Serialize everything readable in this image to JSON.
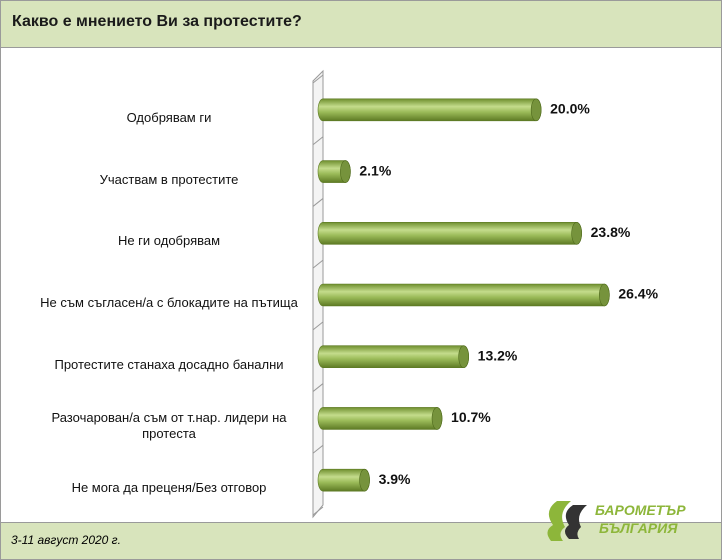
{
  "chart_data": {
    "type": "bar",
    "orientation": "horizontal",
    "title": "Какво е мнението Ви за протестите?",
    "categories": [
      "Одобрявам ги",
      "Участвам в протестите",
      "Не ги одобрявам",
      "Не съм съгласен/а с блокадите на пътища",
      "Протестите станаха досадно банални",
      "Разочарован/а съм от т.нар. лидери на протеста",
      "Не мога да преценя/Без отговор"
    ],
    "values": [
      20.0,
      2.1,
      23.8,
      26.4,
      13.2,
      10.7,
      3.9
    ],
    "value_labels": [
      "20.0%",
      "2.1%",
      "23.8%",
      "26.4%",
      "13.2%",
      "10.7%",
      "3.9%"
    ],
    "color": "#9bbb59",
    "xlim": [
      0,
      35
    ]
  },
  "footer": {
    "date": "3-11 август 2020 г."
  },
  "logo": {
    "line1": "БАРОМЕТЪР",
    "line2": "БЪЛГАРИЯ"
  }
}
